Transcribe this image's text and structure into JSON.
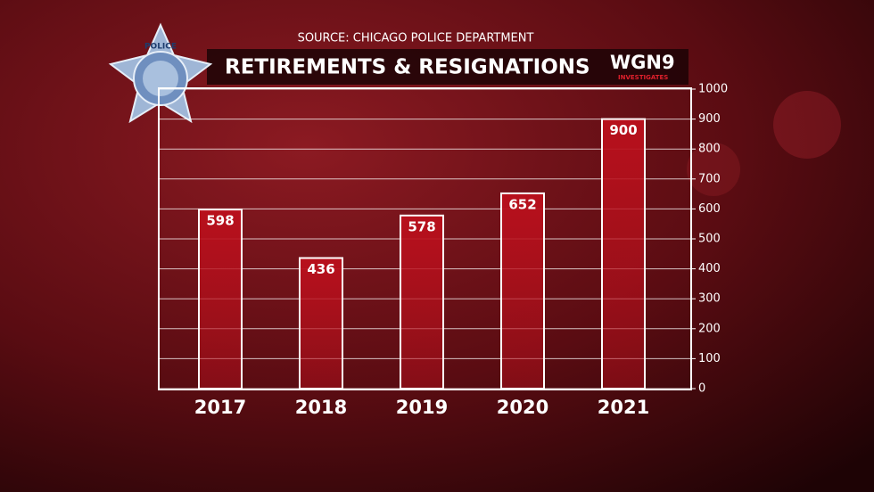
{
  "chart_data": {
    "type": "bar",
    "title": "RETIREMENTS & RESIGNATIONS",
    "subtitle": "SOURCE: CHICAGO POLICE DEPARTMENT",
    "badge": "POLICE",
    "logo": "WGN9",
    "logo_tagline": "INVESTIGATES",
    "categories": [
      "2017",
      "2018",
      "2019",
      "2020",
      "2021"
    ],
    "values": [
      598,
      436,
      578,
      652,
      900
    ],
    "color": "#b8101c",
    "ylim": [
      0,
      1000
    ],
    "yticks": [
      0,
      100,
      200,
      300,
      400,
      500,
      600,
      700,
      800,
      900,
      1000
    ],
    "grid": true
  }
}
